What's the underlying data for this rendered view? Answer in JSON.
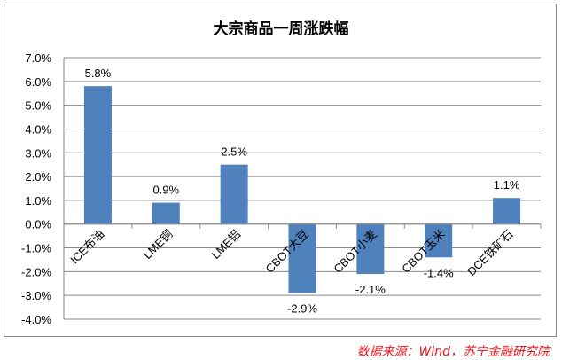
{
  "chart_data": {
    "type": "bar",
    "title": "大宗商品一周涨跌幅",
    "categories": [
      "ICE布油",
      "LME铜",
      "LME铝",
      "CBOT大豆",
      "CBOT小麦",
      "CBOT玉米",
      "DCE铁矿石"
    ],
    "values": [
      5.8,
      0.9,
      2.5,
      -2.9,
      -2.1,
      -1.4,
      1.1
    ],
    "data_labels": [
      "5.8%",
      "0.9%",
      "2.5%",
      "-2.9%",
      "-2.1%",
      "-1.4%",
      "1.1%"
    ],
    "yticks": [
      "7.0%",
      "6.0%",
      "5.0%",
      "4.0%",
      "3.0%",
      "2.0%",
      "1.0%",
      "0.0%",
      "-1.0%",
      "-2.0%",
      "-3.0%",
      "-4.0%"
    ],
    "ylim": [
      -4,
      7
    ],
    "grid": true,
    "bar_color": "#4f81bd",
    "xlabel": "",
    "ylabel": ""
  },
  "source": "数据来源：Wind，苏宁金融研究院",
  "colors": {
    "source_text": "#e8151b"
  }
}
